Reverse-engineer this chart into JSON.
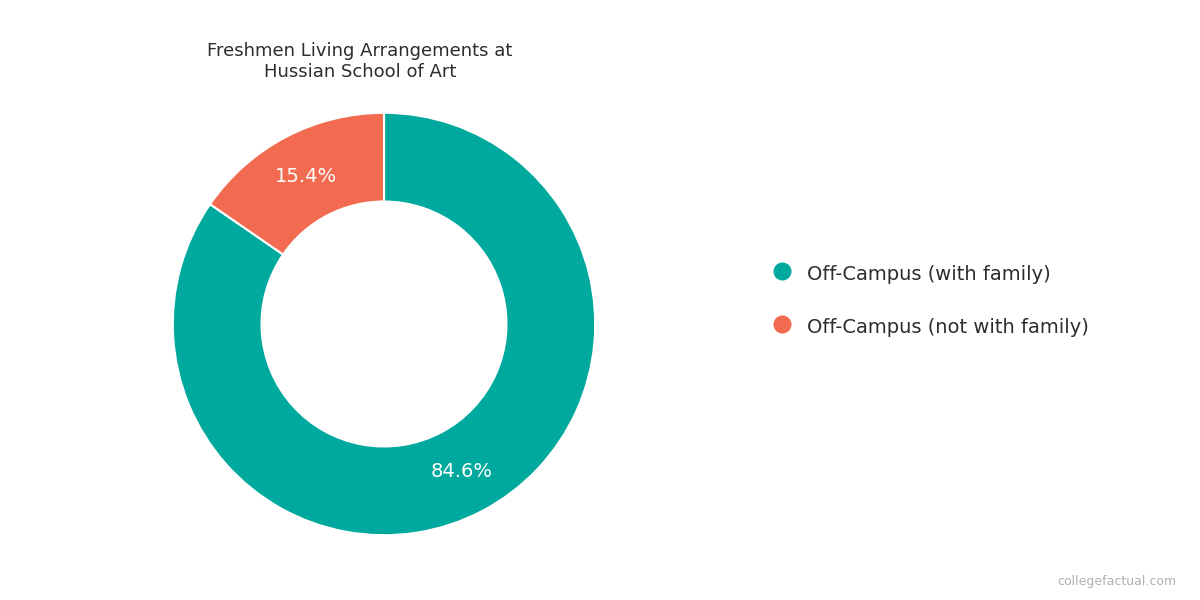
{
  "title": "Freshmen Living Arrangements at\nHussian School of Art",
  "labels": [
    "Off-Campus (with family)",
    "Off-Campus (not with family)"
  ],
  "values": [
    84.6,
    15.4
  ],
  "colors": [
    "#00a99d",
    "#f26b50"
  ],
  "pct_labels": [
    "84.6%",
    "15.4%"
  ],
  "legend_labels": [
    "Off-Campus (with family)",
    "Off-Campus (not with family)"
  ],
  "watermark": "collegefactual.com",
  "bg_color": "#ffffff",
  "title_fontsize": 13,
  "label_fontsize": 14,
  "legend_fontsize": 14,
  "watermark_fontsize": 9,
  "donut_width": 0.42,
  "startangle": 90
}
